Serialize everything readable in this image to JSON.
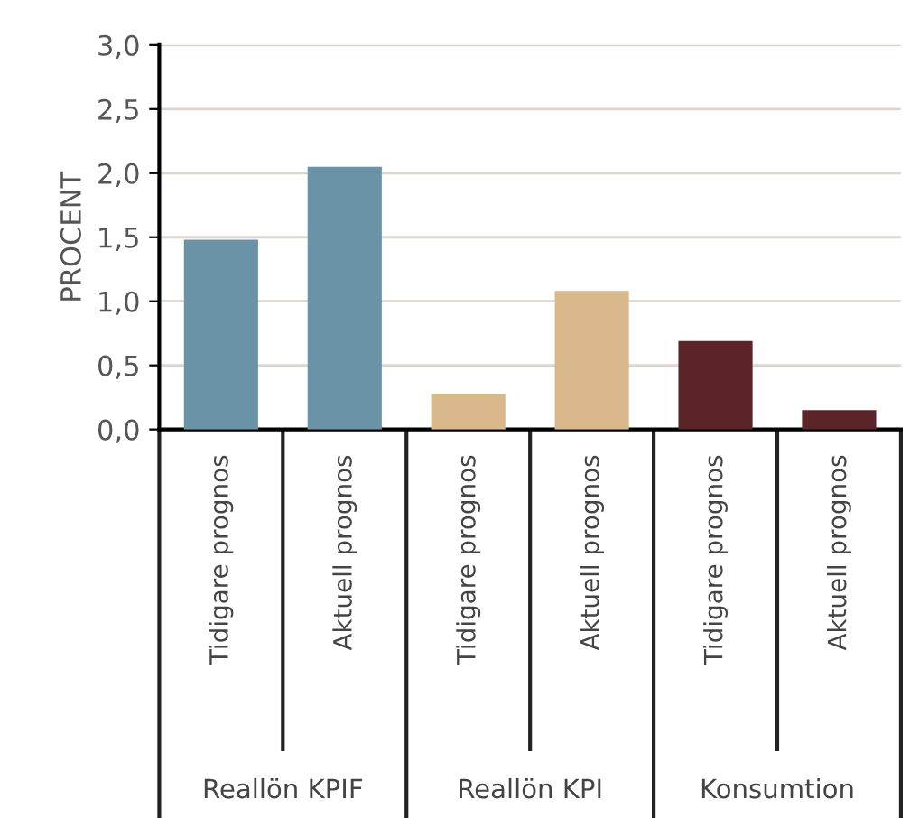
{
  "chart_data": {
    "type": "bar",
    "ylabel": "PROCENT",
    "categories": [
      "Tidigare prognos",
      "Aktuell prognos",
      "Tidigare prognos",
      "Aktuell prognos",
      "Tidigare prognos",
      "Aktuell prognos"
    ],
    "values": [
      1.48,
      2.05,
      0.28,
      1.08,
      0.69,
      0.15
    ],
    "colors": [
      "#6a93a8",
      "#6a93a8",
      "#d9b98b",
      "#d9b98b",
      "#5a2428",
      "#5a2428"
    ],
    "ylim": [
      0,
      3
    ],
    "yticks": [
      {
        "value": 0,
        "label": "0,0"
      },
      {
        "value": 0.5,
        "label": "0,5"
      },
      {
        "value": 1,
        "label": "1,0"
      },
      {
        "value": 1.5,
        "label": "1,5"
      },
      {
        "value": 2,
        "label": "2,0"
      },
      {
        "value": 2.5,
        "label": "2,5"
      },
      {
        "value": 3,
        "label": "3,0"
      }
    ],
    "grid": "y",
    "annotations": [
      "Reallön KPIF",
      "Reallön KPI",
      "Konsumtion"
    ]
  }
}
